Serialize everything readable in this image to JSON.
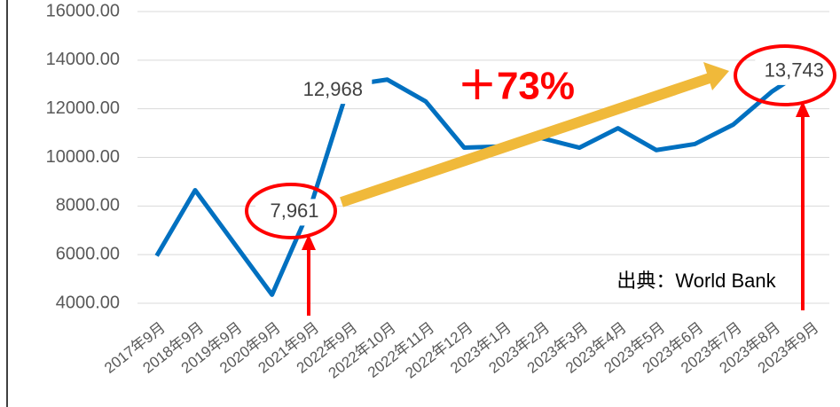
{
  "chart_data": {
    "type": "line",
    "categories": [
      "2017年9月",
      "2018年9月",
      "2019年9月",
      "2020年9月",
      "2021年9月",
      "2022年9月",
      "2022年10月",
      "2022年11月",
      "2022年12月",
      "2023年1月",
      "2023年2月",
      "2023年3月",
      "2023年4月",
      "2023年5月",
      "2023年6月",
      "2023年7月",
      "2023年8月",
      "2023年9月"
    ],
    "series": [
      {
        "color": "#0070c0",
        "values": [
          5950,
          8650,
          6500,
          4350,
          7961,
          12968,
          13200,
          12300,
          10400,
          10450,
          10800,
          10400,
          11200,
          10300,
          10550,
          11350,
          12700,
          13743
        ],
        "value_labels": [
          null,
          null,
          null,
          null,
          "7,961",
          "12,968",
          null,
          null,
          null,
          null,
          null,
          null,
          null,
          null,
          null,
          null,
          null,
          "13,743"
        ]
      }
    ],
    "ylim": [
      4000,
      16000
    ],
    "yticks": [
      {
        "value": 4000,
        "label": "4000.00"
      },
      {
        "value": 6000,
        "label": "6000.00"
      },
      {
        "value": 8000,
        "label": "8000.00"
      },
      {
        "value": 10000,
        "label": "10000.00"
      },
      {
        "value": 12000,
        "label": "12000.00"
      },
      {
        "value": 14000,
        "label": "14000.00"
      },
      {
        "value": 16000,
        "label": "16000.00"
      }
    ],
    "grid": true,
    "annotations": [
      "＋73%",
      "出典：World Bank"
    ]
  }
}
